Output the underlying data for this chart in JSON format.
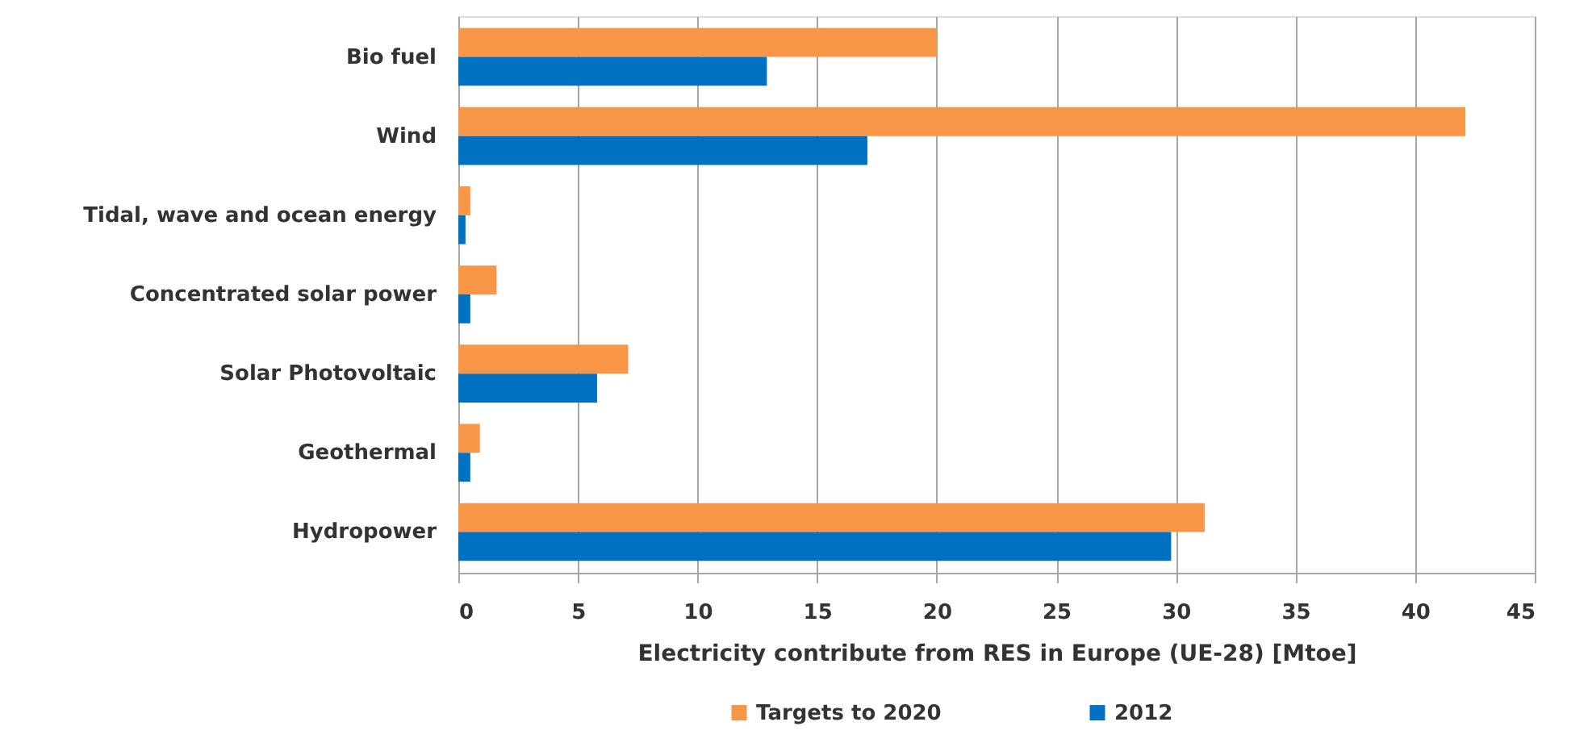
{
  "chart_data": {
    "type": "bar",
    "orientation": "horizontal",
    "categories": [
      "Bio fuel",
      "Wind",
      "Tidal, wave and ocean energy",
      "Concentrated solar power",
      "Solar Photovoltaic",
      "Geothermal",
      "Hydropower"
    ],
    "series": [
      {
        "name": "Targets to 2020",
        "color": "#f79646",
        "values": [
          20.0,
          42.1,
          0.5,
          1.6,
          7.1,
          0.9,
          31.2
        ]
      },
      {
        "name": "2012",
        "color": "#0070c0",
        "values": [
          12.9,
          17.1,
          0.3,
          0.5,
          5.8,
          0.5,
          29.8
        ]
      }
    ],
    "xlabel": "Electricity contribute from RES  in Europe (UE-28) [Mtoe]",
    "xlim": [
      0,
      45
    ],
    "xticks": [
      0,
      5,
      10,
      15,
      20,
      25,
      30,
      35,
      40,
      45
    ],
    "grid": "x",
    "legend": "bottom"
  }
}
